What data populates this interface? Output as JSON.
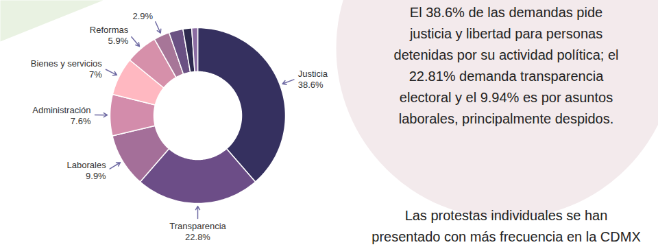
{
  "chart_data": {
    "type": "pie",
    "categories": [
      "Justicia",
      "Transparencia",
      "Laborales",
      "Administración",
      "Bienes y servicios",
      "Reformas",
      null,
      null,
      null,
      null
    ],
    "values": [
      38.6,
      22.8,
      9.9,
      7.6,
      7,
      5.9,
      2.9,
      2.6,
      1.6,
      1.1
    ],
    "value_labels": [
      "38.6%",
      "22.8%",
      "9.9%",
      "7.6%",
      "7%",
      "5.9%",
      "2.9%",
      null,
      null,
      null
    ],
    "colors": [
      "#35305f",
      "#6c4d87",
      "#a46f99",
      "#d38cab",
      "#ffb8c1",
      "#d690aa",
      "#a77698",
      "#6a5183",
      "#2d2a4e",
      "#8b6ca2"
    ],
    "data_labels": true,
    "annotations": [
      [
        "El 38.6% de las demandas pide",
        "justicia y libertad para personas",
        "detenidas por su actividad política; el",
        "22.81% demanda transparencia",
        "electoral y el 9.94% es por asuntos",
        "laborales, principalmente despidos."
      ],
      [
        "Las protestas individuales se han",
        "presentado con más frecuencia en la CDMX"
      ]
    ]
  }
}
